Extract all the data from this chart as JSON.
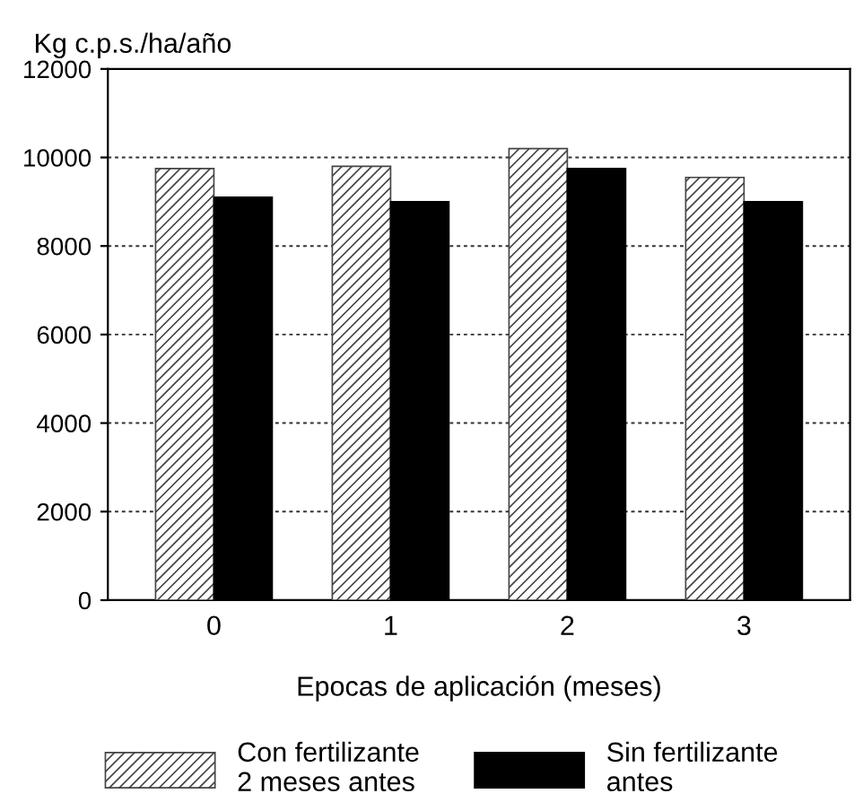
{
  "chart_data": {
    "type": "bar",
    "ylabel": "Kg c.p.s./ha/año",
    "xlabel": "Epocas de aplicación (meses)",
    "categories": [
      "0",
      "1",
      "2",
      "3"
    ],
    "series": [
      {
        "name": "Con fertilizante\n2 meses antes",
        "color": "#444444",
        "values": [
          9750,
          9800,
          10200,
          9550
        ]
      },
      {
        "name": "Sin fertilizante\nantes",
        "color": "#000000",
        "values": [
          9100,
          9000,
          9750,
          9000
        ]
      }
    ],
    "ylim": [
      0,
      12000
    ],
    "yticks": [
      0,
      2000,
      4000,
      6000,
      8000,
      10000,
      12000
    ],
    "grid": "y",
    "legend": "bottom"
  }
}
